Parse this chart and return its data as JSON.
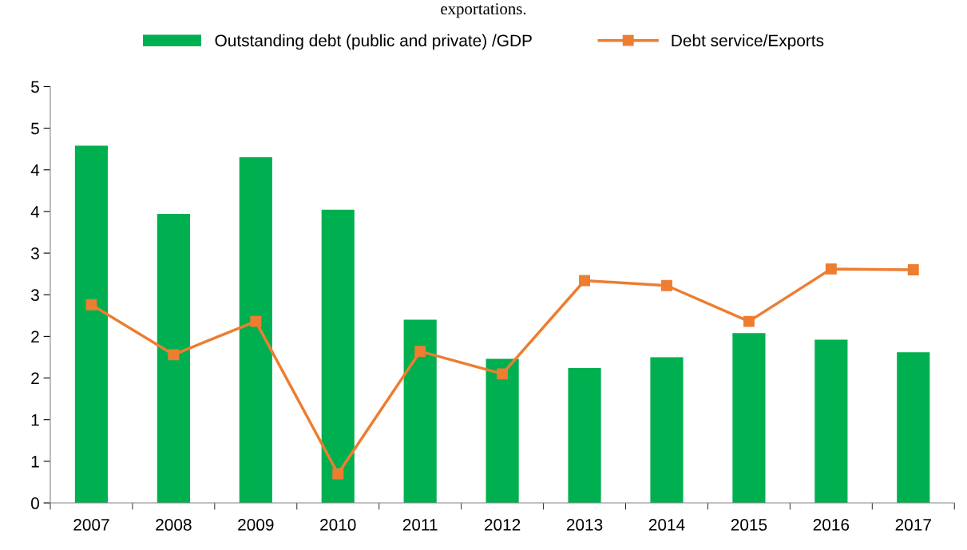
{
  "chart_data": {
    "type": "bar",
    "title": "exportations.",
    "categories": [
      "2007",
      "2008",
      "2009",
      "2010",
      "2011",
      "2012",
      "2013",
      "2014",
      "2015",
      "2016",
      "2017"
    ],
    "series": [
      {
        "name": "Outstanding debt (public and private) /GDP",
        "color": "#00b050",
        "values": [
          4.29,
          3.47,
          4.15,
          3.52,
          2.2,
          1.73,
          1.62,
          1.75,
          2.04,
          1.96,
          1.81
        ]
      },
      {
        "name": "Debt service/Exports",
        "type": "line",
        "color": "#ed7d31",
        "marker": "square",
        "values": [
          2.38,
          1.78,
          2.18,
          0.35,
          1.82,
          1.55,
          2.67,
          2.61,
          2.18,
          2.81,
          2.8
        ]
      }
    ],
    "ylim": [
      0,
      5
    ],
    "yticks": [
      0,
      {
        "value": 0.5,
        "label": "1"
      },
      1,
      {
        "value": 1.5,
        "label": "2"
      },
      2,
      {
        "value": 2.5,
        "label": "3"
      },
      3,
      {
        "value": 3.5,
        "label": "4"
      },
      4,
      {
        "value": 4.5,
        "label": "5"
      },
      5
    ],
    "grid": false,
    "legend": "top"
  }
}
